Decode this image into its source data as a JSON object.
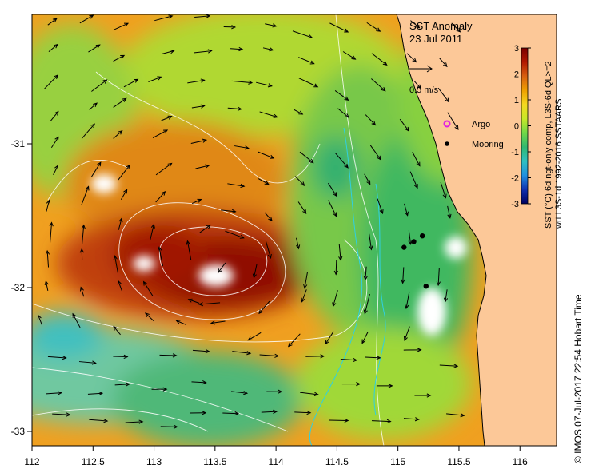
{
  "title": "SST Anomaly",
  "date": "23 Jul 2011",
  "scale_vector_label": "0.5 m/s",
  "legend": {
    "argo_label": "Argo",
    "mooring_label": "Mooring",
    "argo_color": "#e020e0",
    "mooring_color": "#000000"
  },
  "colorbar": {
    "ticks": [
      "3",
      "2",
      "1",
      "0",
      "-1",
      "-2",
      "-3"
    ],
    "label_line1": "SST (°C) 6d ngt-only comp, L3S-6d QL>=2",
    "label_line2": "wrt L3S-1d 1992-2016 SSTAARS",
    "colors": [
      "#7a0000",
      "#b21800",
      "#d86010",
      "#eea000",
      "#f4d820",
      "#c8e828",
      "#70d848",
      "#30b870",
      "#30c0c0",
      "#2090e0",
      "#1030b0",
      "#000060"
    ]
  },
  "credit": "©  IMOS 07-Jul-2017 22:54 Hobart Time",
  "x_ticks": [
    "112",
    "112.5",
    "113",
    "113.5",
    "114",
    "114.5",
    "115",
    "115.5",
    "116"
  ],
  "y_ticks": [
    "-31",
    "-32",
    "-33"
  ],
  "colors": {
    "land": "#fcc898",
    "nodata": "#ffffff",
    "coast": "#000000"
  },
  "chart_data": {
    "type": "map",
    "title": "SST Anomaly",
    "subtitle": "23 Jul 2011",
    "xlim": [
      112,
      116.3
    ],
    "ylim": [
      -33.1,
      -30.1
    ],
    "x_ticks": [
      112,
      112.5,
      113,
      113.5,
      114,
      114.5,
      115,
      115.5,
      116
    ],
    "y_ticks": [
      -31,
      -32,
      -33
    ],
    "color_range": [
      -3,
      3
    ],
    "moorings": [
      {
        "lon": 115.05,
        "lat": -31.72
      },
      {
        "lon": 115.13,
        "lat": -31.68
      },
      {
        "lon": 115.2,
        "lat": -31.64
      },
      {
        "lon": 115.23,
        "lat": -31.99
      }
    ]
  }
}
